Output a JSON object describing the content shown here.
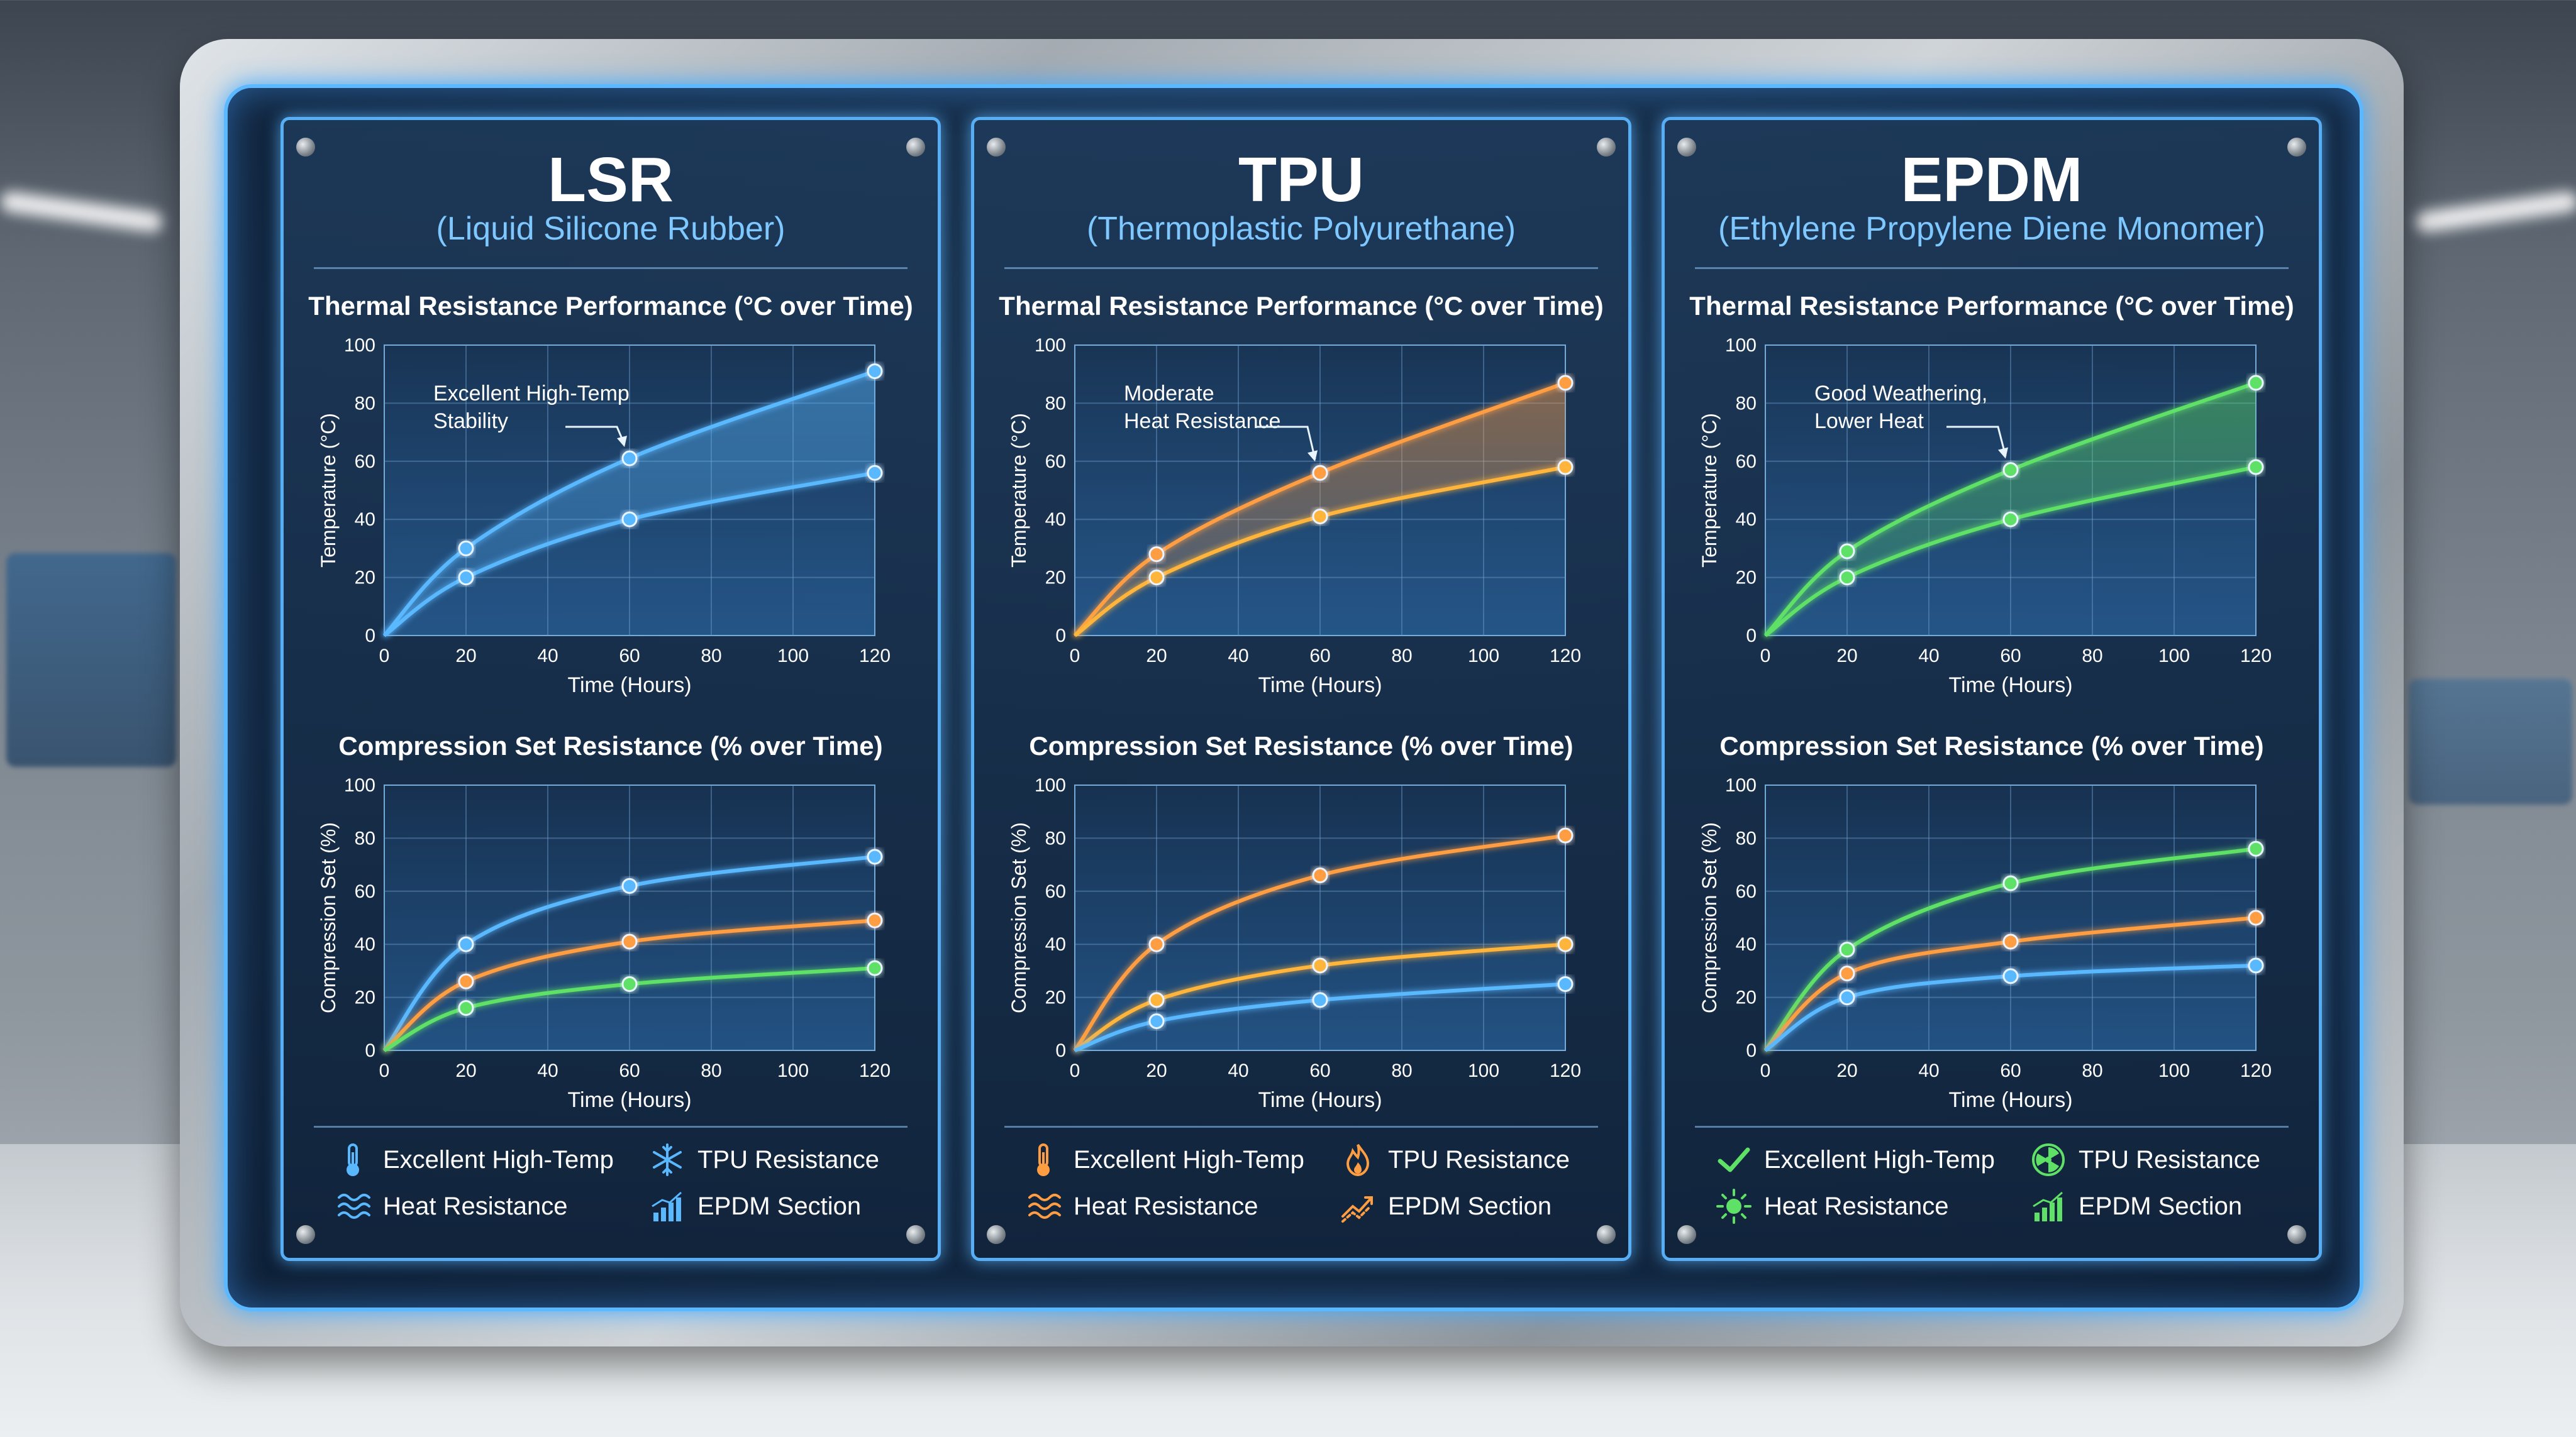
{
  "panels": [
    {
      "title": "LSR",
      "subtitle": "(Liquid Silicone Rubber)",
      "accent": "#5ab8ff",
      "legend": [
        {
          "label": "Excellent High-Temp",
          "icon": "thermometer-icon",
          "color": "#5ab8ff"
        },
        {
          "label": "TPU Resistance",
          "icon": "snowflake-icon",
          "color": "#5ab8ff"
        },
        {
          "label": "Heat Resistance",
          "icon": "heat-waves-icon",
          "color": "#5ab8ff"
        },
        {
          "label": "EPDM Section",
          "icon": "bar-chart-trend-icon",
          "color": "#5ab8ff"
        }
      ],
      "charts": [
        {
          "type": "line",
          "title": "Thermal Resistance Performance (°C over Time)",
          "xlabel": "Time (Hours)",
          "ylabel": "Temperature (°C)",
          "xlim": [
            0,
            120
          ],
          "ylim": [
            0,
            100
          ],
          "xticks": [
            0,
            20,
            40,
            60,
            80,
            100,
            120
          ],
          "yticks": [
            0,
            20,
            40,
            60,
            80,
            100
          ],
          "grid": true,
          "fill_upper": true,
          "annotation": {
            "lines": [
              "Excellent High-Temp",
              "Stability"
            ],
            "target": [
              60,
              61
            ]
          },
          "series": [
            {
              "color": "#5ab8ff",
              "points": [
                [
                  0,
                  0
                ],
                [
                  20,
                  30
                ],
                [
                  60,
                  61
                ],
                [
                  120,
                  91
                ]
              ]
            },
            {
              "color": "#5ab8ff",
              "points": [
                [
                  0,
                  0
                ],
                [
                  20,
                  20
                ],
                [
                  60,
                  40
                ],
                [
                  120,
                  56
                ]
              ]
            }
          ]
        },
        {
          "type": "line",
          "title": "Compression Set Resistance (% over Time)",
          "xlabel": "Time (Hours)",
          "ylabel": "Compression Set (%)",
          "xlim": [
            0,
            120
          ],
          "ylim": [
            0,
            100
          ],
          "xticks": [
            0,
            20,
            40,
            60,
            80,
            100,
            120
          ],
          "yticks": [
            0,
            20,
            40,
            60,
            80,
            100
          ],
          "grid": true,
          "series": [
            {
              "color": "#5ab8ff",
              "points": [
                [
                  0,
                  0
                ],
                [
                  20,
                  40
                ],
                [
                  60,
                  62
                ],
                [
                  120,
                  73
                ]
              ]
            },
            {
              "color": "#ff9d42",
              "points": [
                [
                  0,
                  0
                ],
                [
                  20,
                  26
                ],
                [
                  60,
                  41
                ],
                [
                  120,
                  49
                ]
              ]
            },
            {
              "color": "#5fe066",
              "points": [
                [
                  0,
                  0
                ],
                [
                  20,
                  16
                ],
                [
                  60,
                  25
                ],
                [
                  120,
                  31
                ]
              ]
            }
          ]
        }
      ]
    },
    {
      "title": "TPU",
      "subtitle": "(Thermoplastic Polyurethane)",
      "accent": "#ff9d42",
      "legend": [
        {
          "label": "Excellent High-Temp",
          "icon": "thermometer-icon",
          "color": "#ff9d42"
        },
        {
          "label": "TPU Resistance",
          "icon": "flame-icon",
          "color": "#ff9d42"
        },
        {
          "label": "Heat Resistance",
          "icon": "heat-waves-icon",
          "color": "#ff9d42"
        },
        {
          "label": "EPDM Section",
          "icon": "trend-arrow-icon",
          "color": "#ff9d42"
        }
      ],
      "charts": [
        {
          "type": "line",
          "title": "Thermal Resistance Performance (°C over Time)",
          "xlabel": "Time (Hours)",
          "ylabel": "Temperature (°C)",
          "xlim": [
            0,
            120
          ],
          "ylim": [
            0,
            100
          ],
          "xticks": [
            0,
            20,
            40,
            60,
            80,
            100,
            120
          ],
          "yticks": [
            0,
            20,
            40,
            60,
            80,
            100
          ],
          "grid": true,
          "fill_upper": true,
          "annotation": {
            "lines": [
              "Moderate",
              "Heat Resistance"
            ],
            "target": [
              60,
              56
            ]
          },
          "series": [
            {
              "color": "#ff9d42",
              "points": [
                [
                  0,
                  0
                ],
                [
                  20,
                  28
                ],
                [
                  60,
                  56
                ],
                [
                  120,
                  87
                ]
              ]
            },
            {
              "color": "#ffb43a",
              "points": [
                [
                  0,
                  0
                ],
                [
                  20,
                  20
                ],
                [
                  60,
                  41
                ],
                [
                  120,
                  58
                ]
              ]
            }
          ]
        },
        {
          "type": "line",
          "title": "Compression Set Resistance (% over Time)",
          "xlabel": "Time (Hours)",
          "ylabel": "Compression Set (%)",
          "xlim": [
            0,
            120
          ],
          "ylim": [
            0,
            100
          ],
          "xticks": [
            0,
            20,
            40,
            60,
            80,
            100,
            120
          ],
          "yticks": [
            0,
            20,
            40,
            60,
            80,
            100
          ],
          "grid": true,
          "series": [
            {
              "color": "#ff9d42",
              "points": [
                [
                  0,
                  0
                ],
                [
                  20,
                  40
                ],
                [
                  60,
                  66
                ],
                [
                  120,
                  81
                ]
              ]
            },
            {
              "color": "#ffb43a",
              "points": [
                [
                  0,
                  0
                ],
                [
                  20,
                  19
                ],
                [
                  60,
                  32
                ],
                [
                  120,
                  40
                ]
              ]
            },
            {
              "color": "#5ab8ff",
              "points": [
                [
                  0,
                  0
                ],
                [
                  20,
                  11
                ],
                [
                  60,
                  19
                ],
                [
                  120,
                  25
                ]
              ]
            }
          ]
        }
      ]
    },
    {
      "title": "EPDM",
      "subtitle": "(Ethylene Propylene Diene Monomer)",
      "accent": "#5fe066",
      "legend": [
        {
          "label": "Excellent High-Temp",
          "icon": "checkmark-icon",
          "color": "#5fe066"
        },
        {
          "label": "TPU Resistance",
          "icon": "radiation-icon",
          "color": "#5fe066"
        },
        {
          "label": "Heat Resistance",
          "icon": "sun-icon",
          "color": "#5fe066"
        },
        {
          "label": "EPDM Section",
          "icon": "bar-chart-trend-icon",
          "color": "#5fe066"
        }
      ],
      "charts": [
        {
          "type": "line",
          "title": "Thermal Resistance Performance (°C over Time)",
          "xlabel": "Time (Hours)",
          "ylabel": "Temperature (°C)",
          "xlim": [
            0,
            120
          ],
          "ylim": [
            0,
            100
          ],
          "xticks": [
            0,
            20,
            40,
            60,
            80,
            100,
            120
          ],
          "yticks": [
            0,
            20,
            40,
            60,
            80,
            100
          ],
          "grid": true,
          "fill_upper": true,
          "annotation": {
            "lines": [
              "Good Weathering,",
              "Lower Heat"
            ],
            "target": [
              60,
              57
            ]
          },
          "series": [
            {
              "color": "#5fe066",
              "points": [
                [
                  0,
                  0
                ],
                [
                  20,
                  29
                ],
                [
                  60,
                  57
                ],
                [
                  120,
                  87
                ]
              ]
            },
            {
              "color": "#5fe066",
              "points": [
                [
                  0,
                  0
                ],
                [
                  20,
                  20
                ],
                [
                  60,
                  40
                ],
                [
                  120,
                  58
                ]
              ]
            }
          ]
        },
        {
          "type": "line",
          "title": "Compression Set Resistance (% over Time)",
          "xlabel": "Time (Hours)",
          "ylabel": "Compression Set (%)",
          "xlim": [
            0,
            120
          ],
          "ylim": [
            0,
            100
          ],
          "xticks": [
            0,
            20,
            40,
            60,
            80,
            100,
            120
          ],
          "yticks": [
            0,
            20,
            40,
            60,
            80,
            100
          ],
          "grid": true,
          "series": [
            {
              "color": "#5fe066",
              "points": [
                [
                  0,
                  0
                ],
                [
                  20,
                  38
                ],
                [
                  60,
                  63
                ],
                [
                  120,
                  76
                ]
              ]
            },
            {
              "color": "#ff9d42",
              "points": [
                [
                  0,
                  0
                ],
                [
                  20,
                  29
                ],
                [
                  60,
                  41
                ],
                [
                  120,
                  50
                ]
              ]
            },
            {
              "color": "#5ab8ff",
              "points": [
                [
                  0,
                  0
                ],
                [
                  20,
                  20
                ],
                [
                  60,
                  28
                ],
                [
                  120,
                  32
                ]
              ]
            }
          ]
        }
      ]
    }
  ]
}
